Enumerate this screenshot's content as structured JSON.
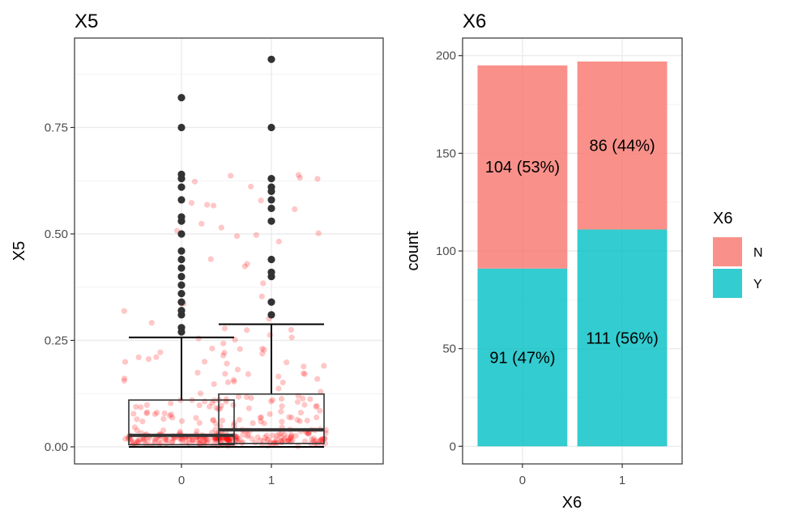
{
  "chart_data": [
    {
      "type": "boxplot",
      "title": "X5",
      "xlabel": "",
      "ylabel": "X5",
      "categories": [
        "0",
        "1"
      ],
      "ylim": [
        -0.04,
        0.96
      ],
      "yticks": [
        0.0,
        0.25,
        0.5,
        0.75
      ],
      "ytick_labels": [
        "0.00",
        "0.25",
        "0.50",
        "0.75"
      ],
      "grid": true,
      "boxes": [
        {
          "category": "0",
          "whisker_low": 0.0,
          "q1": 0.005,
          "median": 0.027,
          "q3": 0.11,
          "whisker_high": 0.257,
          "outliers": [
            0.27,
            0.28,
            0.31,
            0.32,
            0.34,
            0.36,
            0.38,
            0.4,
            0.42,
            0.44,
            0.46,
            0.5,
            0.53,
            0.54,
            0.58,
            0.61,
            0.63,
            0.64,
            0.75,
            0.82
          ]
        },
        {
          "category": "1",
          "whisker_low": 0.0,
          "q1": 0.008,
          "median": 0.04,
          "q3": 0.124,
          "whisker_high": 0.288,
          "outliers": [
            0.31,
            0.34,
            0.4,
            0.41,
            0.44,
            0.53,
            0.56,
            0.58,
            0.6,
            0.61,
            0.63,
            0.75,
            0.91
          ]
        }
      ],
      "jitter_color": "#ff0000",
      "jitter_opacity": 0.22
    },
    {
      "type": "bar",
      "stacked": true,
      "title": "X6",
      "xlabel": "X6",
      "ylabel": "count",
      "categories": [
        "0",
        "1"
      ],
      "ylim": [
        -9,
        209
      ],
      "yticks": [
        0,
        50,
        100,
        150,
        200
      ],
      "ytick_labels": [
        "0",
        "50",
        "100",
        "150",
        "200"
      ],
      "grid": true,
      "series": [
        {
          "name": "Y",
          "color": "#00BFC4",
          "values": [
            91,
            111
          ],
          "labels": [
            "91 (47%)",
            "111 (56%)"
          ]
        },
        {
          "name": "N",
          "color": "#F8766D",
          "values": [
            104,
            86
          ],
          "labels": [
            "104 (53%)",
            "86 (44%)"
          ]
        }
      ],
      "legend": {
        "title": "X6",
        "position": "right",
        "entries": [
          "N",
          "Y"
        ]
      }
    }
  ]
}
